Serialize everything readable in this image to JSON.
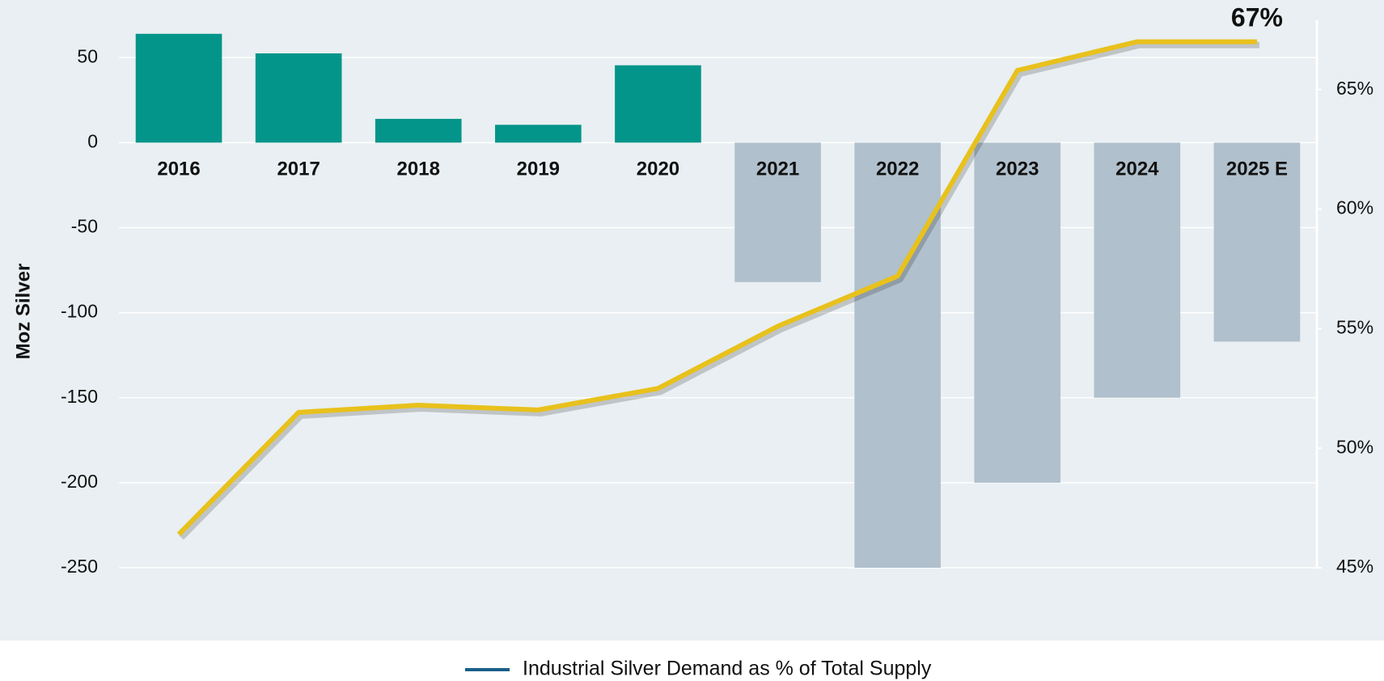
{
  "chart_data": {
    "type": "bar-line",
    "categories": [
      "2016",
      "2017",
      "2018",
      "2019",
      "2020",
      "2021",
      "2022",
      "2023",
      "2024",
      "2025 E"
    ],
    "bars": {
      "values": [
        64,
        52.5,
        14,
        10.5,
        45.5,
        -82,
        -250,
        -200,
        -150,
        -117
      ],
      "positive_color": "#03958a",
      "negative_color": "#b0c0cc"
    },
    "series": [
      {
        "name": "Industrial Silver Demand as % of Total Supply",
        "color": "#e8c11c",
        "legend_color": "#1a5f8a",
        "axis": "y2",
        "values": [
          46.4,
          51.5,
          51.8,
          51.6,
          52.5,
          55.1,
          57.2,
          65.8,
          67,
          67
        ]
      }
    ],
    "annotation": "67%",
    "ylabel": "Moz Silver",
    "ylim": [
      -250,
      72
    ],
    "yticks": [
      50,
      0,
      -50,
      -100,
      -150,
      -200,
      -250
    ],
    "y2lim": [
      45,
      67.9
    ],
    "y2ticks": [
      {
        "value": 65,
        "label": "65%"
      },
      {
        "value": 60,
        "label": "60%"
      },
      {
        "value": 55,
        "label": "55%"
      },
      {
        "value": 50,
        "label": "50%"
      },
      {
        "value": 45,
        "label": "45%"
      }
    ],
    "grid": true
  }
}
